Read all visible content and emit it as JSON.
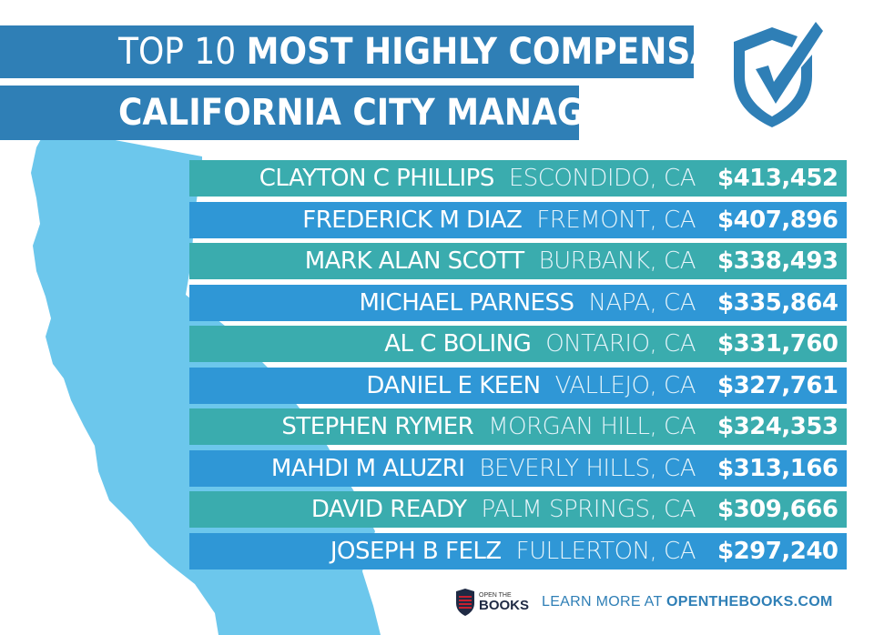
{
  "title": {
    "line1_light": "TOP 10",
    "line1_bold": "MOST HIGHLY COMPENSATED",
    "line2": "CALIFORNIA CITY MANAGERS"
  },
  "colors": {
    "title_banner": "#2f7fb6",
    "row_teal": "#3aacae",
    "row_blue": "#2f97d6",
    "map": "#6cc7ec",
    "icon": "#2f7fb6"
  },
  "icons": [
    "checkmark-shield-icon",
    "california-map",
    "open-the-books-logo"
  ],
  "managers": [
    {
      "name": "CLAYTON C PHILLIPS",
      "location": "ESCONDIDO, CA",
      "amount": "$413,452"
    },
    {
      "name": "FREDERICK M DIAZ",
      "location": "FREMONT, CA",
      "amount": "$407,896"
    },
    {
      "name": "MARK ALAN SCOTT",
      "location": "BURBANK, CA",
      "amount": "$338,493"
    },
    {
      "name": "MICHAEL PARNESS",
      "location": "NAPA, CA",
      "amount": "$335,864"
    },
    {
      "name": "AL C BOLING",
      "location": "ONTARIO, CA",
      "amount": "$331,760"
    },
    {
      "name": "DANIEL E KEEN",
      "location": "VALLEJO, CA",
      "amount": "$327,761"
    },
    {
      "name": "STEPHEN RYMER",
      "location": "MORGAN HILL, CA",
      "amount": "$324,353"
    },
    {
      "name": "MAHDI M ALUZRI",
      "location": "BEVERLY HILLS, CA",
      "amount": "$313,166"
    },
    {
      "name": "DAVID READY",
      "location": "PALM SPRINGS, CA",
      "amount": "$309,666"
    },
    {
      "name": "JOSEPH B FELZ",
      "location": "FULLERTON, CA",
      "amount": "$297,240"
    }
  ],
  "footer": {
    "logo_line1": "OPEN THE",
    "logo_line2": "BOOKS",
    "learn_prefix": "LEARN MORE AT",
    "learn_url": "OPENTHEBOOKS.COM"
  }
}
